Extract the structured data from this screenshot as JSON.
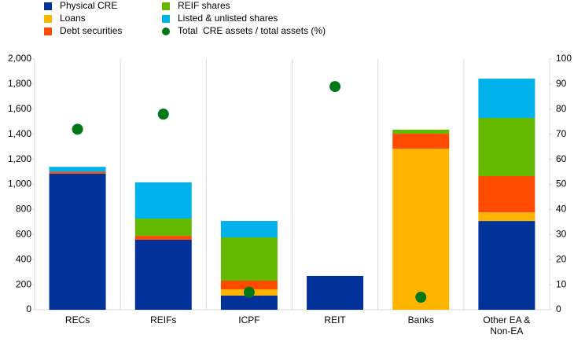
{
  "chart_data": {
    "type": "bar",
    "stacked": true,
    "categories": [
      "RECs",
      "REIFs",
      "ICPF",
      "REIT",
      "Banks",
      "Other EA & Non-EA"
    ],
    "series": [
      {
        "name": "Physical CRE",
        "color": "#003299",
        "values": [
          1085,
          558,
          113,
          270,
          0,
          708
        ]
      },
      {
        "name": "Loans",
        "color": "#ffb400",
        "values": [
          0,
          0,
          50,
          0,
          1285,
          69
        ]
      },
      {
        "name": "Debt securities",
        "color": "#ff4b00",
        "values": [
          15,
          31,
          69,
          0,
          119,
          289
        ]
      },
      {
        "name": "REIF shares",
        "color": "#65b800",
        "values": [
          0,
          138,
          345,
          0,
          32,
          464
        ]
      },
      {
        "name": "Listed & unlisted shares",
        "color": "#00b1ea",
        "values": [
          40,
          289,
          131,
          0,
          0,
          313
        ]
      },
      {
        "name": "Total  CRE assets / total assets (%)",
        "color": "#007816",
        "type": "scatter",
        "axis": "y2",
        "values": [
          72,
          78,
          7,
          89,
          5,
          null
        ]
      }
    ],
    "ylim": [
      0,
      2000
    ],
    "yticks": [
      0,
      {
        "value": 200,
        "label": "200"
      },
      400,
      600,
      800,
      {
        "value": 1000,
        "label": "1,000"
      },
      {
        "value": 1200,
        "label": "1,200"
      },
      {
        "value": 1400,
        "label": "1,400"
      },
      {
        "value": 1600,
        "label": "1,600"
      },
      {
        "value": 1800,
        "label": "1,800"
      },
      {
        "value": 2000,
        "label": "2,000"
      }
    ],
    "y2lim": [
      0,
      100
    ],
    "y2ticks": [
      0,
      10,
      20,
      30,
      40,
      50,
      60,
      70,
      80,
      90,
      100
    ],
    "legend": "top-left"
  }
}
